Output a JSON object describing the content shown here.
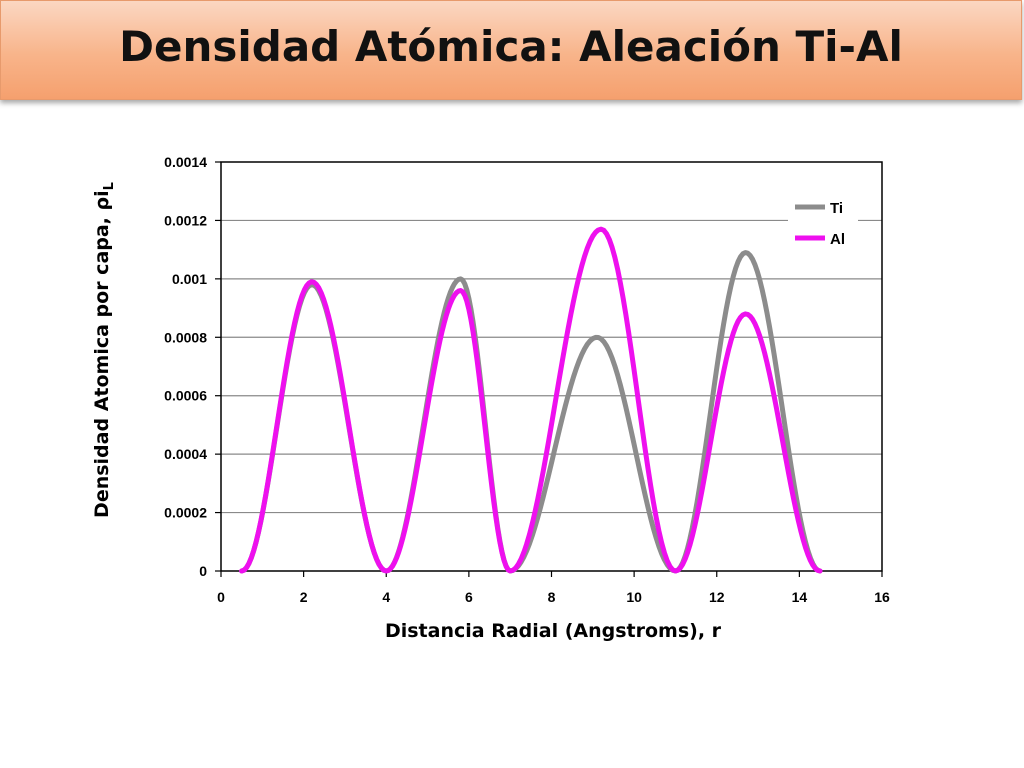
{
  "slide": {
    "title": "Densidad Atómica: Aleación Ti-Al"
  },
  "chart_data": {
    "type": "line",
    "title": "",
    "xlabel": "Distancia Radial (Angstroms), r",
    "ylabel_main": "Densidad Atomica por capa, ",
    "ylabel_rho": "ρi",
    "ylabel_sub": "L",
    "xlim": [
      0,
      16
    ],
    "ylim": [
      0,
      0.0014
    ],
    "xticks": [
      "0",
      "2",
      "4",
      "6",
      "8",
      "10",
      "12",
      "14",
      "16"
    ],
    "yticks": [
      "0",
      "0.0002",
      "0.0004",
      "0.0006",
      "0.0008",
      "0.001",
      "0.0012",
      "0.0014"
    ],
    "grid": true,
    "legend_position": "top-right",
    "series": [
      {
        "name": "Ti",
        "color": "#8c8c8c",
        "peaks": [
          {
            "start": 0.5,
            "end": 4.0,
            "peak_x": 2.2,
            "peak_y": 0.00098
          },
          {
            "start": 4.0,
            "end": 7.0,
            "peak_x": 5.8,
            "peak_y": 0.001
          },
          {
            "start": 7.0,
            "end": 11.0,
            "peak_x": 9.1,
            "peak_y": 0.0008
          },
          {
            "start": 11.0,
            "end": 14.5,
            "peak_x": 12.7,
            "peak_y": 0.00109
          }
        ]
      },
      {
        "name": "Al",
        "color": "#ee10ee",
        "peaks": [
          {
            "start": 0.5,
            "end": 4.0,
            "peak_x": 2.2,
            "peak_y": 0.00099
          },
          {
            "start": 4.0,
            "end": 7.0,
            "peak_x": 5.8,
            "peak_y": 0.00096
          },
          {
            "start": 7.0,
            "end": 11.0,
            "peak_x": 9.2,
            "peak_y": 0.00117
          },
          {
            "start": 11.0,
            "end": 14.5,
            "peak_x": 12.7,
            "peak_y": 0.00088
          }
        ]
      }
    ]
  }
}
